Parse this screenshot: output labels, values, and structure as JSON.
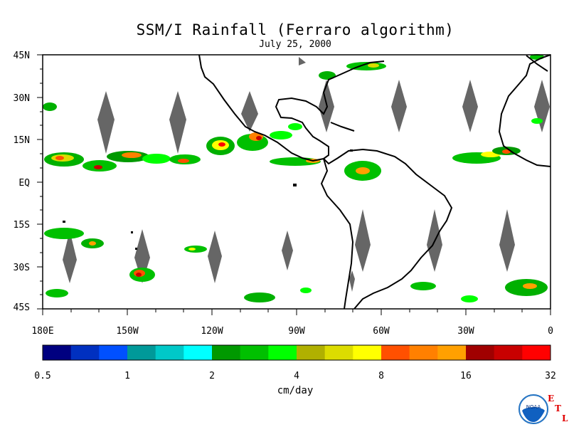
{
  "title": "SSM/I Rainfall (Ferraro algorithm)",
  "subtitle": "July 25, 2000",
  "axes": {
    "lat_labels": [
      "45N",
      "30N",
      "15N",
      "EQ",
      "15S",
      "30S",
      "45S"
    ],
    "lon_labels": [
      "180E",
      "150W",
      "120W",
      "90W",
      "60W",
      "30W",
      "0"
    ]
  },
  "colorbar": {
    "tick_labels": [
      "0.5",
      "1",
      "2",
      "4",
      "8",
      "16",
      "32"
    ],
    "units": "cm/day",
    "colors": [
      "#000080",
      "#0030c0",
      "#0050ff",
      "#009999",
      "#00c8c8",
      "#00ffff",
      "#009900",
      "#00c000",
      "#00ff00",
      "#b0b000",
      "#dcdc00",
      "#ffff00",
      "#ff5000",
      "#ff8000",
      "#ffa000",
      "#a00000",
      "#c80000",
      "#ff0000"
    ]
  },
  "logo": {
    "letters": [
      "E",
      "T",
      "L"
    ],
    "noaa_text": "NOAA"
  },
  "colors": {
    "missing_gray": "#666666",
    "coast": "#000000"
  }
}
